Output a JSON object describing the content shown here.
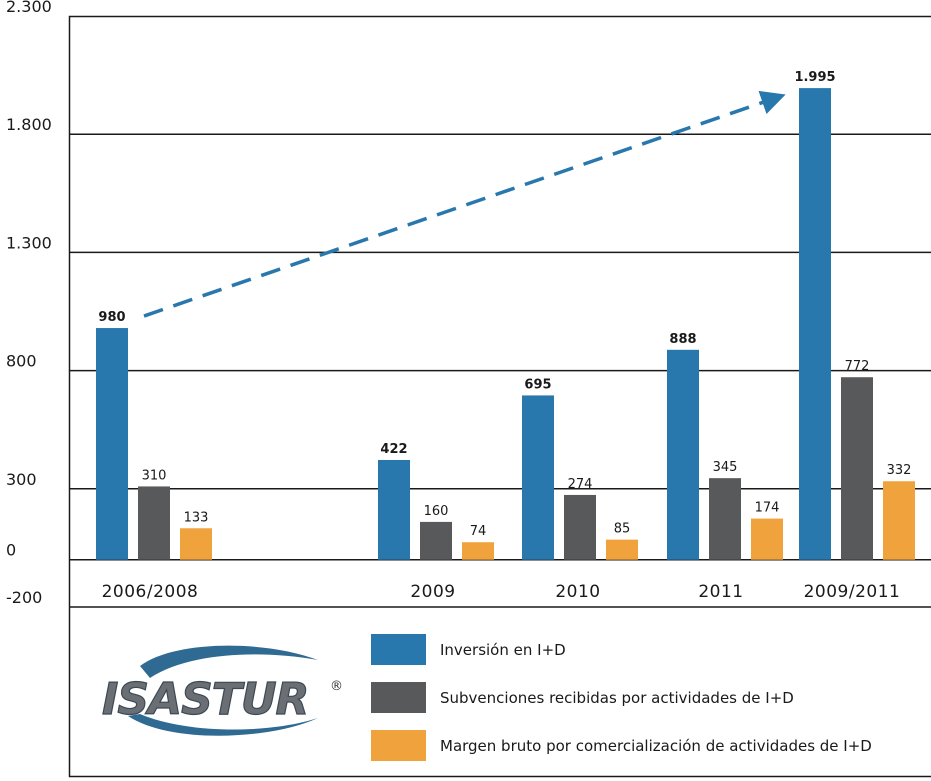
{
  "chart_data": {
    "type": "bar",
    "title": "",
    "xlabel": "",
    "ylabel": "",
    "ylim": [
      -200,
      2300
    ],
    "y_ticks": [
      -200,
      0,
      300,
      800,
      1300,
      1800,
      2300
    ],
    "y_tick_labels": [
      "-200",
      "0",
      "300",
      "800",
      "1.300",
      "1.800",
      "2.300"
    ],
    "categories": [
      "2006/2008",
      "2009",
      "2010",
      "2011",
      "2009/2011"
    ],
    "series": [
      {
        "name": "Inversión en I+D",
        "color": "#2878ad",
        "bold_labels": true,
        "values": [
          980,
          422,
          695,
          888,
          1995
        ],
        "value_labels": [
          "980",
          "422",
          "695",
          "888",
          "1.995"
        ]
      },
      {
        "name": "Subvenciones recibidas por actividades de I+D",
        "color": "#58595b",
        "bold_labels": false,
        "values": [
          310,
          160,
          274,
          345,
          772
        ],
        "value_labels": [
          "310",
          "160",
          "274",
          "345",
          "772"
        ]
      },
      {
        "name": "Margen bruto por comercialización de actividades de I+D",
        "color": "#f0a23c",
        "bold_labels": false,
        "values": [
          133,
          74,
          85,
          174,
          332
        ],
        "value_labels": [
          "133",
          "74",
          "85",
          "174",
          "332"
        ]
      }
    ],
    "annotation": {
      "type": "dashed-arrow",
      "from_value": 980,
      "to_value": 1995,
      "color": "#2878ad"
    },
    "legend_position": "bottom-right"
  },
  "logo": {
    "text": "ISASTUR",
    "mark": "®"
  }
}
